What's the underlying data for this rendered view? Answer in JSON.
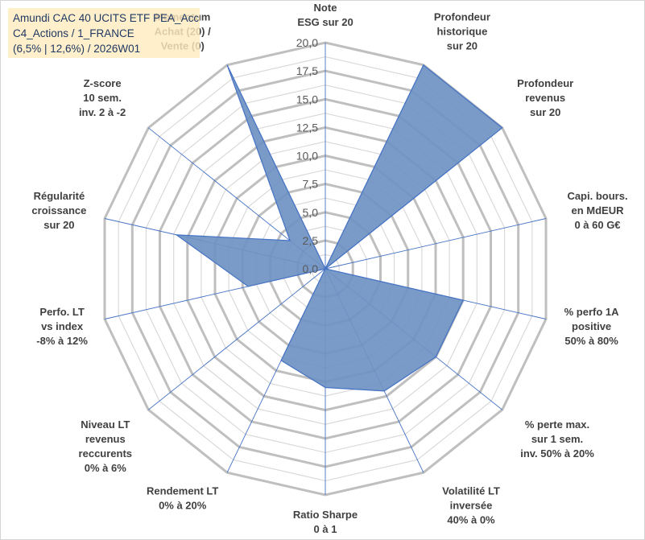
{
  "title_box": {
    "line1": "Amundi CAC 40 UCITS ETF PEA_Acc",
    "line2": "C4_Actions / 1_FRANCE",
    "line3": "(6,5% | 12,6%) / 2026W01"
  },
  "chart_data": {
    "type": "radar",
    "rlim": [
      0,
      20
    ],
    "ticks": [
      "0,0",
      "2,5",
      "5,0",
      "7,5",
      "10,0",
      "12,5",
      "15,0",
      "17,5",
      "20,0"
    ],
    "grid": true,
    "colors": {
      "fill": "#6f93c2",
      "line": "#4472c4",
      "grid": "#c0c0c0"
    },
    "axes": [
      {
        "label": [
          "Note",
          "ESG sur 20"
        ],
        "value": 0
      },
      {
        "label": [
          "Profondeur",
          "historique",
          "sur 20"
        ],
        "value": 20
      },
      {
        "label": [
          "Profondeur",
          "revenus",
          "sur 20"
        ],
        "value": 20
      },
      {
        "label": [
          "Capi. bours.",
          "en MdEUR",
          "0 à 60 G€"
        ],
        "value": 0
      },
      {
        "label": [
          "% perfo 1A",
          "positive",
          "50% à 80%"
        ],
        "value": 12.5
      },
      {
        "label": [
          "% perte max.",
          "sur 1 sem.",
          "inv. 50% à 20%"
        ],
        "value": 12.5
      },
      {
        "label": [
          "Volatilité LT",
          "inversée",
          "40% à 0%"
        ],
        "value": 12
      },
      {
        "label": [
          "Ratio Sharpe",
          "0 à 1"
        ],
        "value": 10.5
      },
      {
        "label": [
          "Rendement LT",
          "0% à 20%"
        ],
        "value": 9
      },
      {
        "label": [
          "Niveau LT",
          "revenus",
          "reccurents",
          "0% à 6%"
        ],
        "value": 0
      },
      {
        "label": [
          "Perfo. LT",
          "vs index",
          "-8% à 12%"
        ],
        "value": 7
      },
      {
        "label": [
          "Régularité",
          "croissance",
          "sur 20"
        ],
        "value": 13.5
      },
      {
        "label": [
          "Z-score",
          "10 sem.",
          "inv. 2 à -2"
        ],
        "value": 4
      },
      {
        "label": [
          "Momentum",
          "Achat (20) /",
          "Vente (0)"
        ],
        "value": 20
      }
    ]
  }
}
